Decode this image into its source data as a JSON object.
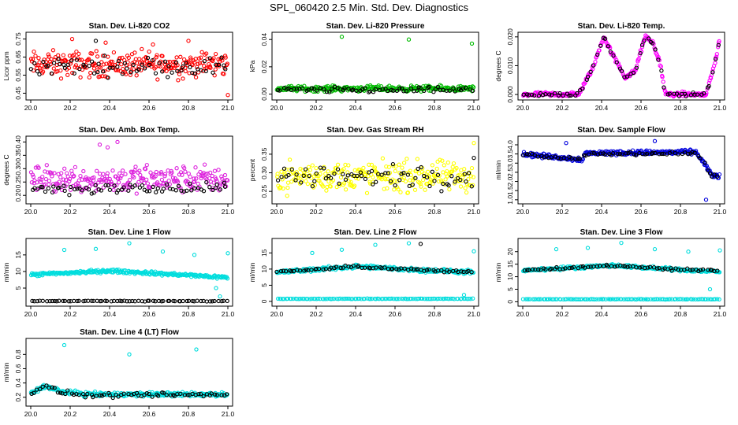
{
  "figure_title": "SPL_060420  2.5 Min. Std. Dev. Diagnostics",
  "chart_data": [
    {
      "type": "scatter",
      "title": "Stan. Dev. Li-820 CO2",
      "ylabel": "Licor ppm",
      "xlim": [
        20.0,
        21.0
      ],
      "ylim": [
        0.43,
        0.77
      ],
      "x_ticks": [
        "20.0",
        "20.2",
        "20.4",
        "20.6",
        "20.8",
        "21.0"
      ],
      "y_ticks": [
        "0.45",
        "0.55",
        "0.65",
        "0.75"
      ],
      "series": [
        {
          "name": "primary",
          "color": "#ff0000",
          "base": 0.61,
          "spread": 0.07,
          "outliers": [
            [
              20.21,
              0.75
            ],
            [
              20.38,
              0.73
            ],
            [
              20.62,
              0.72
            ],
            [
              20.8,
              0.74
            ],
            [
              21.0,
              0.44
            ]
          ]
        },
        {
          "name": "secondary",
          "color": "#000000",
          "base": 0.6,
          "spread": 0.05,
          "outliers": [
            [
              20.33,
              0.74
            ]
          ]
        }
      ]
    },
    {
      "type": "scatter",
      "title": "Stan. Dev. Li-820 Pressure",
      "ylabel": "kPa",
      "xlim": [
        20.0,
        21.0
      ],
      "ylim": [
        -0.002,
        0.043
      ],
      "x_ticks": [
        "20.0",
        "20.2",
        "20.4",
        "20.6",
        "20.8",
        "21.0"
      ],
      "y_ticks": [
        "0.00",
        "0.02",
        "0.04"
      ],
      "series": [
        {
          "name": "primary",
          "color": "#00bb00",
          "base": 0.004,
          "spread": 0.002,
          "outliers": [
            [
              20.33,
              0.042
            ],
            [
              20.67,
              0.04
            ],
            [
              20.99,
              0.037
            ]
          ]
        },
        {
          "name": "secondary",
          "color": "#000000",
          "base": 0.003,
          "spread": 0.002,
          "outliers": []
        }
      ]
    },
    {
      "type": "scatter",
      "title": "Stan. Dev. Li-820 Temp.",
      "ylabel": "degrees C",
      "xlim": [
        20.0,
        21.0
      ],
      "ylim": [
        -0.0008,
        0.0205
      ],
      "x_ticks": [
        "20.0",
        "20.2",
        "20.4",
        "20.6",
        "20.8",
        "21.0"
      ],
      "y_ticks": [
        "0.000",
        "0.010",
        "0.020"
      ],
      "series": [
        {
          "name": "primary",
          "color": "#ff00ff",
          "curve": [
            [
              20.0,
              0
            ],
            [
              20.28,
              0
            ],
            [
              20.3,
              0.002
            ],
            [
              20.36,
              0.01
            ],
            [
              20.41,
              0.02
            ],
            [
              20.47,
              0.012
            ],
            [
              20.52,
              0.006
            ],
            [
              20.57,
              0.008
            ],
            [
              20.62,
              0.02
            ],
            [
              20.66,
              0.018
            ],
            [
              20.7,
              0.01
            ],
            [
              20.72,
              0.001
            ],
            [
              20.74,
              0
            ],
            [
              20.93,
              0
            ],
            [
              20.95,
              0.005
            ],
            [
              20.98,
              0.012
            ],
            [
              21.0,
              0.02
            ]
          ],
          "spread": 0.0008
        },
        {
          "name": "secondary",
          "color": "#000000",
          "curve": [
            [
              20.0,
              0
            ],
            [
              20.28,
              0
            ],
            [
              20.3,
              0.002
            ],
            [
              20.36,
              0.01
            ],
            [
              20.41,
              0.02
            ],
            [
              20.47,
              0.012
            ],
            [
              20.52,
              0.006
            ],
            [
              20.57,
              0.008
            ],
            [
              20.62,
              0.02
            ],
            [
              20.66,
              0.018
            ],
            [
              20.7,
              0.01
            ],
            [
              20.72,
              0.001
            ],
            [
              20.74,
              0
            ],
            [
              20.93,
              0
            ],
            [
              20.95,
              0.005
            ],
            [
              20.98,
              0.012
            ],
            [
              21.0,
              0.02
            ]
          ],
          "spread": 0.0006
        }
      ]
    },
    {
      "type": "scatter",
      "title": "Stan. Dev. Amb. Box Temp.",
      "ylabel": "degrees C",
      "xlim": [
        20.0,
        21.0
      ],
      "ylim": [
        0.18,
        0.41
      ],
      "x_ticks": [
        "20.0",
        "20.2",
        "20.4",
        "20.6",
        "20.8",
        "21.0"
      ],
      "y_ticks": [
        "0.20",
        "0.25",
        "0.30",
        "0.35",
        "0.40"
      ],
      "series": [
        {
          "name": "primary",
          "color": "#dd22dd",
          "base": 0.26,
          "spread": 0.05,
          "outliers": [
            [
              20.35,
              0.39
            ],
            [
              20.44,
              0.4
            ],
            [
              20.39,
              0.38
            ]
          ]
        },
        {
          "name": "secondary",
          "color": "#000000",
          "base": 0.225,
          "spread": 0.02,
          "outliers": []
        }
      ]
    },
    {
      "type": "scatter",
      "title": "Stan. Dev. Gas Stream RH",
      "ylabel": "percent",
      "xlim": [
        20.0,
        21.0
      ],
      "ylim": [
        0.225,
        0.39
      ],
      "x_ticks": [
        "20.0",
        "20.2",
        "20.4",
        "20.6",
        "20.8",
        "21.0"
      ],
      "y_ticks": [
        "0.25",
        "0.30",
        "0.35"
      ],
      "series": [
        {
          "name": "primary",
          "color": "#ffff00",
          "base": 0.29,
          "spread": 0.04,
          "outliers": [
            [
              21.0,
              0.38
            ]
          ]
        },
        {
          "name": "secondary",
          "color": "#000000",
          "base": 0.29,
          "spread": 0.03,
          "outliers": [
            [
              21.0,
              0.34
            ]
          ]
        }
      ]
    },
    {
      "type": "scatter",
      "title": "Stan. Dev. Sample Flow",
      "ylabel": "ml/min",
      "xlim": [
        20.0,
        21.0
      ],
      "ylim": [
        0.95,
        4.3
      ],
      "x_ticks": [
        "20.0",
        "20.2",
        "20.4",
        "20.6",
        "20.8",
        "21.0"
      ],
      "y_ticks": [
        "1.0",
        "1.5",
        "2.0",
        "2.5",
        "3.0",
        "3.5",
        "4.0"
      ],
      "series": [
        {
          "name": "primary",
          "color": "#0000dd",
          "curve": [
            [
              20.0,
              3.5
            ],
            [
              20.3,
              3.2
            ],
            [
              20.32,
              3.55
            ],
            [
              20.88,
              3.6
            ],
            [
              20.92,
              3.0
            ],
            [
              20.96,
              2.3
            ],
            [
              21.0,
              2.3
            ]
          ],
          "spread": 0.12,
          "outliers": [
            [
              20.22,
              4.1
            ],
            [
              20.67,
              4.2
            ],
            [
              20.93,
              1.0
            ]
          ]
        },
        {
          "name": "secondary",
          "color": "#000000",
          "curve": [
            [
              20.0,
              3.45
            ],
            [
              20.3,
              3.2
            ],
            [
              20.32,
              3.5
            ],
            [
              20.88,
              3.55
            ],
            [
              20.92,
              3.0
            ],
            [
              20.96,
              2.3
            ],
            [
              21.0,
              2.3
            ]
          ],
          "spread": 0.08,
          "outliers": []
        }
      ]
    },
    {
      "type": "scatter",
      "title": "Stan. Dev. Line 1 Flow",
      "ylabel": "ml/min",
      "xlim": [
        20.0,
        21.0
      ],
      "ylim": [
        0.5,
        19
      ],
      "x_ticks": [
        "20.0",
        "20.2",
        "20.4",
        "20.6",
        "20.8",
        "21.0"
      ],
      "y_ticks": [
        "5",
        "10",
        "15"
      ],
      "series": [
        {
          "name": "primary",
          "color": "#00dddd",
          "curve": [
            [
              20.0,
              9
            ],
            [
              20.4,
              10.2
            ],
            [
              20.7,
              9.2
            ],
            [
              21.0,
              8.2
            ]
          ],
          "spread": 0.5,
          "outliers": [
            [
              20.17,
              16.5
            ],
            [
              20.33,
              16.8
            ],
            [
              20.5,
              18.5
            ],
            [
              20.67,
              16
            ],
            [
              20.83,
              15
            ],
            [
              21.0,
              15.5
            ],
            [
              20.96,
              2.5
            ],
            [
              20.94,
              5
            ]
          ]
        },
        {
          "name": "secondary",
          "color": "#000000",
          "curve": [
            [
              20.0,
              1.1
            ],
            [
              21.0,
              1.1
            ]
          ],
          "spread": 0.1,
          "outliers": []
        }
      ]
    },
    {
      "type": "scatter",
      "title": "Stan. Dev. Line 2 Flow",
      "ylabel": "ml/min",
      "xlim": [
        20.0,
        21.0
      ],
      "ylim": [
        -0.5,
        18.5
      ],
      "x_ticks": [
        "20.0",
        "20.2",
        "20.4",
        "20.6",
        "20.8",
        "21.0"
      ],
      "y_ticks": [
        "0",
        "5",
        "10",
        "15"
      ],
      "series": [
        {
          "name": "primary",
          "color": "#00dddd",
          "curve": [
            [
              20.0,
              9
            ],
            [
              20.4,
              10.8
            ],
            [
              20.7,
              9.8
            ],
            [
              21.0,
              9
            ]
          ],
          "spread": 0.6,
          "outliers": [
            [
              20.18,
              15
            ],
            [
              20.33,
              16
            ],
            [
              20.5,
              17.5
            ],
            [
              20.67,
              18
            ],
            [
              20.95,
              2
            ],
            [
              21.0,
              15.5
            ]
          ]
        },
        {
          "name": "secondary",
          "color": "#000000",
          "curve": [
            [
              20.0,
              9
            ],
            [
              20.4,
              10.8
            ],
            [
              20.7,
              9.8
            ],
            [
              21.0,
              9
            ]
          ],
          "spread": 0.4,
          "outliers": [
            [
              20.73,
              17.8
            ]
          ]
        },
        {
          "name": "baseline",
          "color": "#00dddd",
          "curve": [
            [
              20.0,
              0.8
            ],
            [
              21.0,
              0.8
            ]
          ],
          "spread": 0.08,
          "outliers": []
        }
      ]
    },
    {
      "type": "scatter",
      "title": "Stan. Dev. Line 3 Flow",
      "ylabel": "ml/min",
      "xlim": [
        20.0,
        21.0
      ],
      "ylim": [
        -0.5,
        24
      ],
      "x_ticks": [
        "20.0",
        "20.2",
        "20.4",
        "20.6",
        "20.8",
        "21.0"
      ],
      "y_ticks": [
        "0",
        "5",
        "10",
        "15",
        "20"
      ],
      "series": [
        {
          "name": "primary",
          "color": "#00dddd",
          "curve": [
            [
              20.0,
              12.5
            ],
            [
              20.45,
              14.5
            ],
            [
              20.75,
              13
            ],
            [
              21.0,
              12
            ]
          ],
          "spread": 0.6,
          "outliers": [
            [
              20.17,
              21
            ],
            [
              20.33,
              21.5
            ],
            [
              20.5,
              23.5
            ],
            [
              20.67,
              21
            ],
            [
              20.84,
              20
            ],
            [
              21.0,
              20.5
            ],
            [
              20.95,
              5
            ]
          ]
        },
        {
          "name": "secondary",
          "color": "#000000",
          "curve": [
            [
              20.0,
              12.5
            ],
            [
              20.45,
              14.5
            ],
            [
              20.75,
              13
            ],
            [
              21.0,
              12.5
            ]
          ],
          "spread": 0.4,
          "outliers": []
        },
        {
          "name": "baseline",
          "color": "#00dddd",
          "curve": [
            [
              20.0,
              1
            ],
            [
              21.0,
              1
            ]
          ],
          "spread": 0.08,
          "outliers": []
        }
      ]
    },
    {
      "type": "scatter",
      "title": "Stan. Dev. Line 4 (LT) Flow",
      "ylabel": "ml/min",
      "xlim": [
        20.0,
        21.0
      ],
      "ylim": [
        0.12,
        0.98
      ],
      "x_ticks": [
        "20.0",
        "20.2",
        "20.4",
        "20.6",
        "20.8",
        "21.0"
      ],
      "y_ticks": [
        "0.2",
        "0.4",
        "0.6",
        "0.8"
      ],
      "series": [
        {
          "name": "primary",
          "color": "#00dddd",
          "curve": [
            [
              20.0,
              0.25
            ],
            [
              20.07,
              0.36
            ],
            [
              20.15,
              0.28
            ],
            [
              20.3,
              0.24
            ],
            [
              21.0,
              0.24
            ]
          ],
          "spread": 0.03,
          "outliers": [
            [
              20.17,
              0.93
            ],
            [
              20.5,
              0.8
            ],
            [
              20.84,
              0.87
            ]
          ]
        },
        {
          "name": "secondary",
          "color": "#000000",
          "curve": [
            [
              20.0,
              0.25
            ],
            [
              20.07,
              0.36
            ],
            [
              20.15,
              0.27
            ],
            [
              20.3,
              0.22
            ],
            [
              21.0,
              0.24
            ]
          ],
          "spread": 0.03,
          "outliers": []
        }
      ]
    }
  ]
}
